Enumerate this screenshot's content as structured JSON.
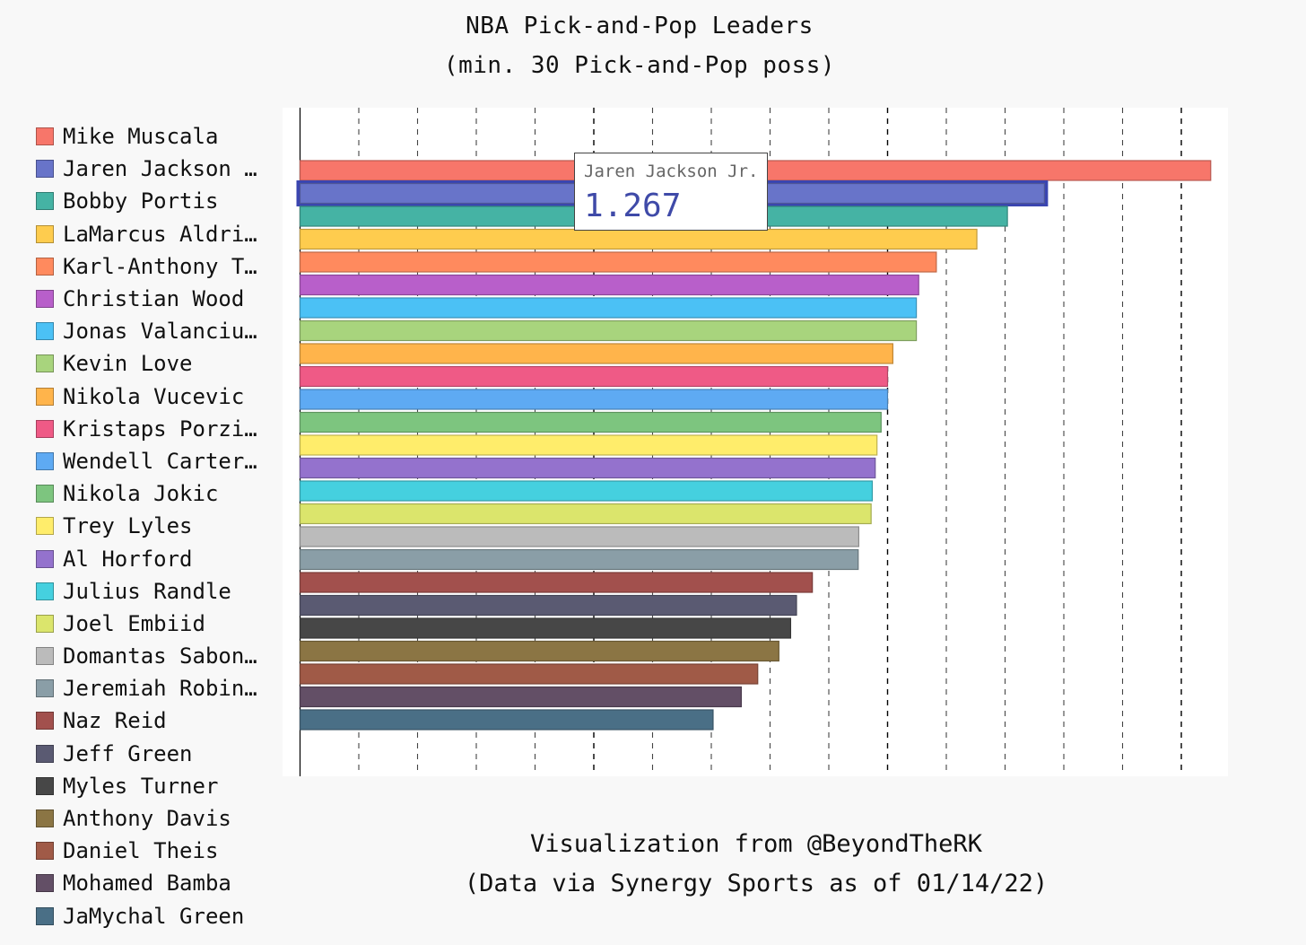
{
  "chart_data": {
    "type": "bar",
    "orientation": "horizontal",
    "title": "NBA Pick-and-Pop Leaders",
    "subtitle": "(min. 30 Pick-and-Pop poss)",
    "footer_line1": "Visualization from @BeyondTheRK",
    "footer_line2": "(Data via Synergy Sports as of 01/14/22)",
    "xlim": [
      0,
      1.6
    ],
    "ticks": [
      "0",
      "0.1",
      "0.2",
      "0.3",
      "0.4",
      "0.5",
      "0.6",
      "0.7",
      "0.8",
      "0.9",
      "1",
      "1.1",
      "1.2",
      "1.3",
      "1.4",
      "1.5"
    ],
    "legend_position": "left",
    "grid": "vertical dashed",
    "bars": [
      {
        "name": "Mike Muscala",
        "legend_label": "Mike Muscala",
        "value": 1.55,
        "color": "#f7766a"
      },
      {
        "name": "Jaren Jackson Jr.",
        "legend_label": "Jaren Jackson …",
        "value": 1.267,
        "color": "#6874c9"
      },
      {
        "name": "Bobby Portis",
        "legend_label": "Bobby Portis",
        "value": 1.204,
        "color": "#45b3a4"
      },
      {
        "name": "LaMarcus Aldridge",
        "legend_label": "LaMarcus Aldri…",
        "value": 1.152,
        "color": "#fecc4e"
      },
      {
        "name": "Karl-Anthony Towns",
        "legend_label": "Karl-Anthony T…",
        "value": 1.083,
        "color": "#ff8a5e"
      },
      {
        "name": "Christian Wood",
        "legend_label": "Christian Wood",
        "value": 1.053,
        "color": "#b85fca"
      },
      {
        "name": "Jonas Valanciunas",
        "legend_label": "Jonas Valanciu…",
        "value": 1.049,
        "color": "#4bc1f5"
      },
      {
        "name": "Kevin Love",
        "legend_label": "Kevin Love",
        "value": 1.049,
        "color": "#a8d47d"
      },
      {
        "name": "Nikola Vucevic",
        "legend_label": "Nikola Vucevic",
        "value": 1.009,
        "color": "#ffb44b"
      },
      {
        "name": "Kristaps Porzingis",
        "legend_label": "Kristaps Porzi…",
        "value": 1.0,
        "color": "#ef5a86"
      },
      {
        "name": "Wendell Carter Jr.",
        "legend_label": "Wendell Carter…",
        "value": 1.0,
        "color": "#5eaaf3"
      },
      {
        "name": "Nikola Jokic",
        "legend_label": "Nikola Jokic",
        "value": 0.989,
        "color": "#7dc57f"
      },
      {
        "name": "Trey Lyles",
        "legend_label": "Trey Lyles",
        "value": 0.982,
        "color": "#ffed6b"
      },
      {
        "name": "Al Horford",
        "legend_label": "Al Horford",
        "value": 0.979,
        "color": "#9472cd"
      },
      {
        "name": "Julius Randle",
        "legend_label": "Julius Randle",
        "value": 0.974,
        "color": "#45d0df"
      },
      {
        "name": "Joel Embiid",
        "legend_label": "Joel Embiid",
        "value": 0.972,
        "color": "#dbe56c"
      },
      {
        "name": "Domantas Sabonis",
        "legend_label": "Domantas Sabon…",
        "value": 0.951,
        "color": "#bbbbbb"
      },
      {
        "name": "Jeremiah Robinson-Earl",
        "legend_label": "Jeremiah Robin…",
        "value": 0.95,
        "color": "#8a9ea7"
      },
      {
        "name": "Naz Reid",
        "legend_label": "Naz Reid",
        "value": 0.872,
        "color": "#a2504d"
      },
      {
        "name": "Jeff Green",
        "legend_label": "Jeff Green",
        "value": 0.845,
        "color": "#5a5a72"
      },
      {
        "name": "Myles Turner",
        "legend_label": "Myles Turner",
        "value": 0.835,
        "color": "#474747"
      },
      {
        "name": "Anthony Davis",
        "legend_label": "Anthony Davis",
        "value": 0.815,
        "color": "#8b7544"
      },
      {
        "name": "Daniel Theis",
        "legend_label": "Daniel Theis",
        "value": 0.779,
        "color": "#a05a47"
      },
      {
        "name": "Mohamed Bamba",
        "legend_label": "Mohamed Bamba",
        "value": 0.751,
        "color": "#634f66"
      },
      {
        "name": "JaMychal Green",
        "legend_label": "JaMychal Green",
        "value": 0.703,
        "color": "#4a6f86"
      }
    ]
  },
  "tooltip": {
    "name": "Jaren Jackson Jr.",
    "value": "1.267"
  },
  "highlighted_bar": "Jaren Jackson Jr."
}
